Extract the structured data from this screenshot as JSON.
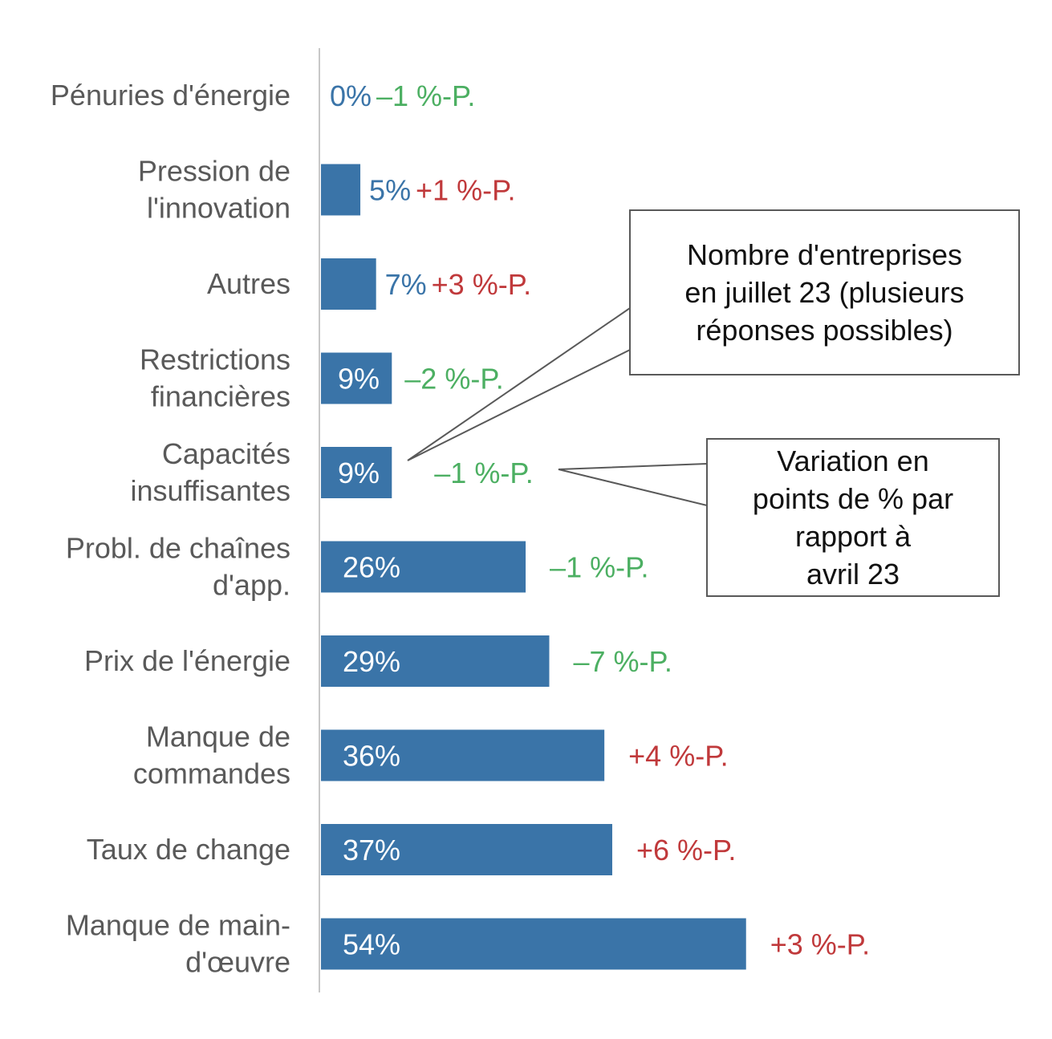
{
  "chart_data": {
    "type": "bar",
    "orientation": "horizontal",
    "categories": [
      "Pénuries d'énergie",
      "Pression de\nl'innovation",
      "Autres",
      "Restrictions\nfinancières",
      "Capacités\ninsuffisantes",
      "Probl. de chaînes\nd'app.",
      "Prix de l'énergie",
      "Manque de\ncommandes",
      "Taux de change",
      "Manque de main-\nd'œuvre"
    ],
    "values": [
      0,
      5,
      7,
      9,
      9,
      26,
      29,
      36,
      37,
      54
    ],
    "value_labels": [
      "0%",
      "5%",
      "7%",
      "9%",
      "9%",
      "26%",
      "29%",
      "36%",
      "37%",
      "54%"
    ],
    "changes": [
      -1,
      1,
      3,
      -2,
      -1,
      -1,
      -7,
      4,
      6,
      3
    ],
    "change_labels": [
      "–1 %-P.",
      "+1 %-P.",
      "+3 %-P.",
      "–2 %-P.",
      "–1 %-P.",
      "–1 %-P.",
      "–7 %-P.",
      "+4 %-P.",
      "+6 %-P.",
      "+3 %-P."
    ],
    "xlim": [
      0,
      60
    ],
    "grid": false,
    "colors": {
      "bar": "#3a74a8",
      "label_outside": "#3a74a8",
      "label_inside": "#ffffff",
      "positive_change": "#c0393b",
      "negative_change": "#4caf62",
      "category_text": "#595959",
      "axis": "#c8c8c8"
    }
  },
  "annotations": {
    "bar_values_note": "Nombre d'entreprises\nen juillet 23 (plusieurs\nréponses possibles)",
    "change_note": "Variation en\npoints de % par\nrapport à\navril 23"
  }
}
